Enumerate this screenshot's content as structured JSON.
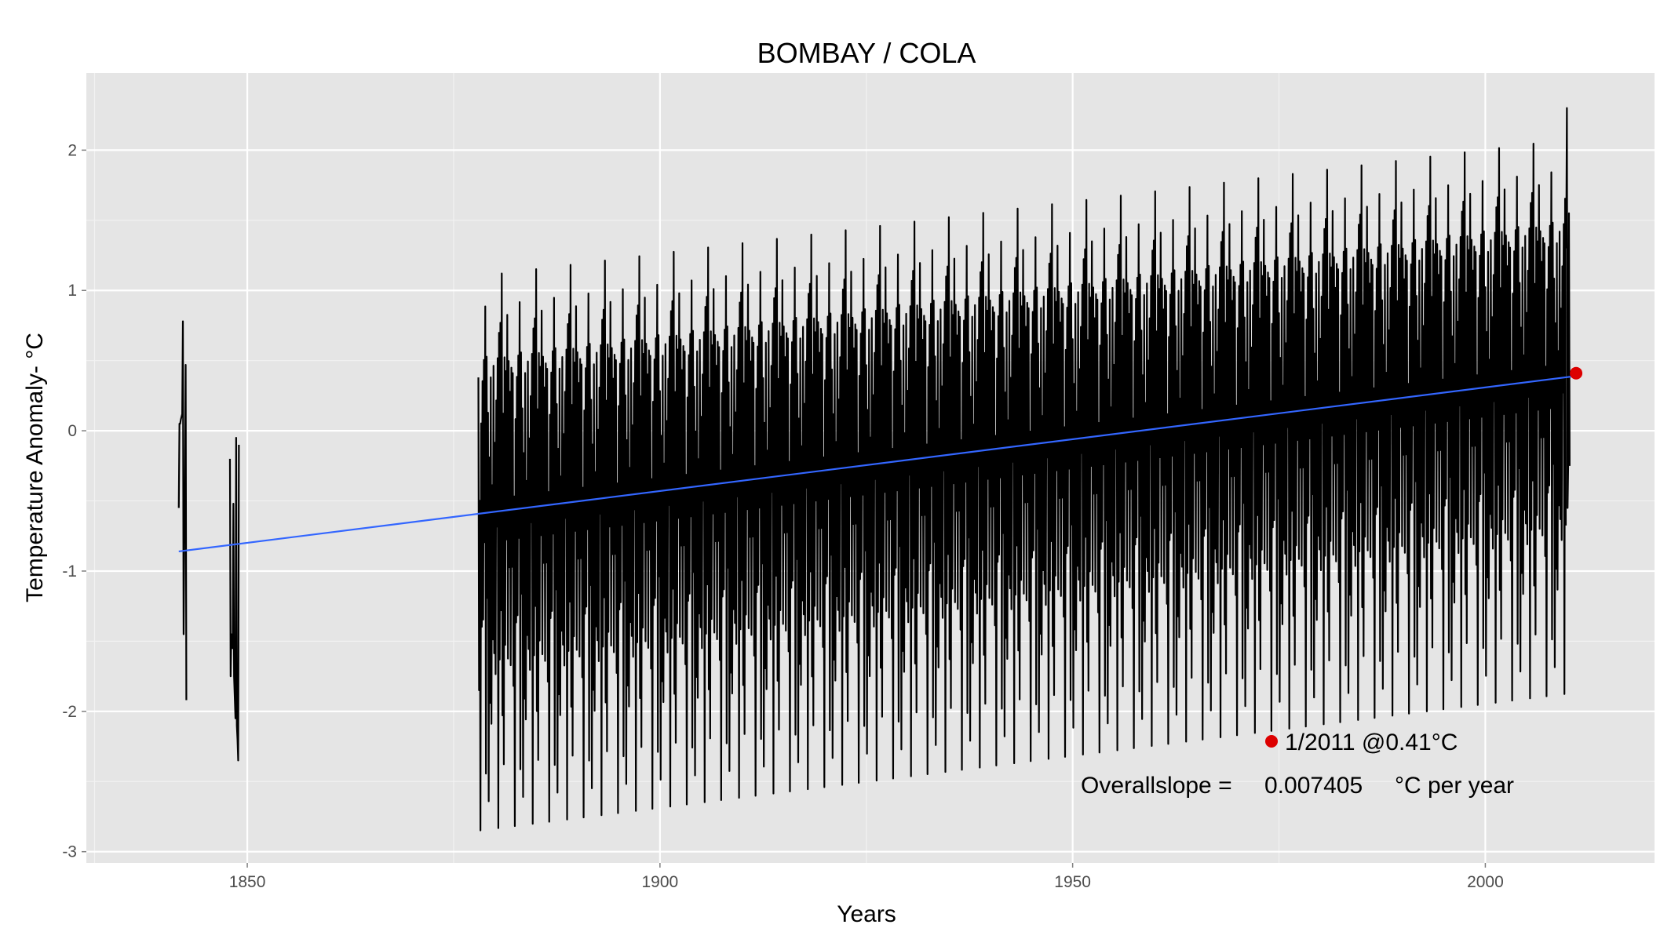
{
  "chart_data": {
    "type": "line",
    "title": "BOMBAY / COLA",
    "xlabel": "Years",
    "ylabel": "Temperature Anomaly- °C",
    "xlim": [
      1830.5,
      2020.5
    ],
    "ylim": [
      -3.08,
      2.55
    ],
    "x_ticks": [
      1850,
      1900,
      1950,
      2000
    ],
    "y_ticks": [
      -3,
      -2,
      -1,
      0,
      1,
      2
    ],
    "x_tick_labels": [
      "1850",
      "1900",
      "1950",
      "2000"
    ],
    "y_tick_labels": [
      "-3",
      "-2",
      "-1",
      "0",
      "1",
      "2"
    ],
    "grid": true,
    "colors": {
      "panel": "#e5e5e5",
      "grid": "#ffffff",
      "series": "#000000",
      "trend": "#3366ff",
      "highlight": "#dd0000"
    },
    "series": [
      {
        "kind": "monthly_anomaly",
        "segments": [
          {
            "start_year": 1841.7,
            "values": [
              -0.55,
              0.05,
              0.05,
              0.08,
              0.1,
              0.12,
              0.78,
              -1.45,
              -0.8,
              -0.4,
              0.47,
              -1.92
            ]
          },
          {
            "start_year": 1847.9,
            "values": [
              -0.2,
              -1.75,
              -1.45,
              -1.5,
              -1.55,
              -0.52,
              -1.75,
              -1.9,
              -2.05,
              -0.05,
              -2.1,
              -2.2,
              -2.35,
              -0.1
            ]
          },
          {
            "start_year": 1878.0,
            "pattern": [
              0.38,
              -1.85,
              -0.5,
              -2.85,
              0.05,
              -1.4,
              0.35,
              -1.35,
              0.5,
              -0.8,
              0.88,
              -2.45,
              0.52,
              -1.2,
              0.12,
              -2.65,
              -0.2,
              -1.95,
              0.37,
              -2.1,
              -0.4,
              -1.5,
              0.45,
              -1.6,
              -0.1,
              -1.75,
              0.2,
              -0.7,
              0.5,
              -2.85,
              0.68,
              -1.65,
              0.75,
              -1.3,
              1.1,
              -2.05,
              0.1,
              -2.4,
              0.5,
              -1.55,
              0.4,
              -0.8,
              0.8,
              -1.65,
              0.47,
              -1.0,
              0.25,
              -1.7,
              0.42,
              -1.0
            ],
            "slope_per_year": 0.0074
          },
          {
            "start_year": 2009.8,
            "values": [
              1.3,
              2.3,
              -0.55,
              -0.2,
              1.55,
              -0.25
            ]
          }
        ]
      },
      {
        "name": "trend",
        "x": [
          1841.7,
          2011.0
        ],
        "y": [
          -0.86,
          0.39
        ]
      }
    ],
    "highlight_point": {
      "x": 2011.0,
      "y": 0.41
    },
    "annotations": {
      "point_label": "1/2011 @0.41°C",
      "slope_label": "Overallslope =",
      "slope_value": "0.007405",
      "slope_unit": "°C per year"
    }
  }
}
